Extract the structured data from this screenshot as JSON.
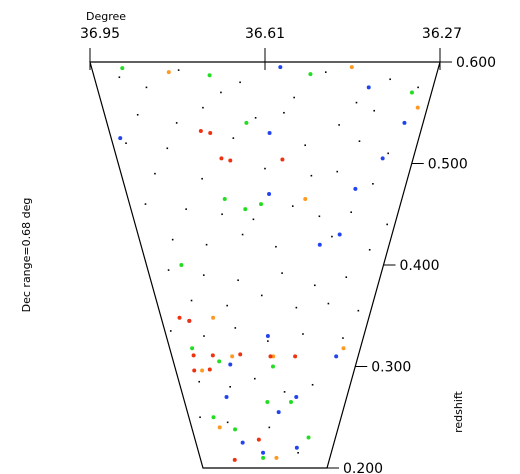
{
  "chart_data": {
    "type": "scatter",
    "x_label": "Degree",
    "y_label": "redshift",
    "side_label": "Dec range=0.68 deg",
    "xlim": [
      36.95,
      36.27
    ],
    "xticks": [
      36.95,
      36.61,
      36.27
    ],
    "ylim": [
      0.2,
      0.6
    ],
    "yticks": [
      {
        "value": 0.2,
        "label": "0.200"
      },
      {
        "value": 0.3,
        "label": "0.300"
      },
      {
        "value": 0.4,
        "label": "0.400"
      },
      {
        "value": 0.5,
        "label": "0.500"
      },
      {
        "value": 0.6,
        "label": "0.600"
      }
    ],
    "series": [
      {
        "color": "#000000",
        "x": [
          36.9,
          36.85,
          36.78,
          36.7,
          36.66,
          36.55,
          36.49,
          36.42,
          36.36,
          36.3,
          36.88,
          36.8,
          36.74,
          36.63,
          36.57,
          36.45,
          36.38,
          36.92,
          36.83,
          36.68,
          36.52,
          36.4,
          36.33,
          36.87,
          36.76,
          36.61,
          36.5,
          36.44,
          36.35,
          36.91,
          36.81,
          36.72,
          36.64,
          36.54,
          36.47,
          36.39,
          36.29,
          36.86,
          36.77,
          36.67,
          36.58,
          36.43,
          36.32,
          36.89,
          36.79,
          36.69,
          36.56,
          36.46,
          36.37,
          36.84,
          36.73,
          36.62,
          36.51,
          36.41,
          36.31,
          36.93,
          36.82,
          36.71,
          36.6,
          36.48,
          36.34,
          36.87,
          36.75,
          36.65,
          36.53,
          36.42,
          36.9,
          36.78,
          36.59,
          36.44
        ],
        "y": [
          0.585,
          0.575,
          0.592,
          0.57,
          0.58,
          0.565,
          0.59,
          0.56,
          0.583,
          0.575,
          0.548,
          0.54,
          0.555,
          0.545,
          0.55,
          0.538,
          0.552,
          0.52,
          0.515,
          0.525,
          0.518,
          0.522,
          0.51,
          0.49,
          0.485,
          0.495,
          0.488,
          0.492,
          0.48,
          0.46,
          0.455,
          0.45,
          0.445,
          0.458,
          0.448,
          0.452,
          0.44,
          0.425,
          0.42,
          0.43,
          0.418,
          0.428,
          0.415,
          0.395,
          0.39,
          0.385,
          0.392,
          0.38,
          0.388,
          0.365,
          0.36,
          0.37,
          0.358,
          0.362,
          0.355,
          0.335,
          0.33,
          0.338,
          0.325,
          0.332,
          0.328,
          0.285,
          0.28,
          0.288,
          0.275,
          0.282,
          0.25,
          0.245,
          0.24,
          0.215
        ]
      },
      {
        "color": "#22dd22",
        "x": [
          36.89,
          36.72,
          36.52,
          36.31,
          36.65,
          36.71,
          36.66,
          36.62,
          36.85,
          36.87,
          36.78,
          36.58,
          36.84,
          36.6,
          36.5,
          36.75,
          36.4,
          36.62
        ],
        "y": [
          0.594,
          0.587,
          0.588,
          0.57,
          0.54,
          0.465,
          0.455,
          0.46,
          0.4,
          0.318,
          0.305,
          0.3,
          0.25,
          0.265,
          0.265,
          0.238,
          0.23,
          0.21
        ]
      },
      {
        "color": "#ff9922",
        "x": [
          36.8,
          36.44,
          36.29,
          36.51,
          36.78,
          36.73,
          36.58,
          36.33,
          36.85,
          36.55,
          36.82
        ],
        "y": [
          0.59,
          0.595,
          0.555,
          0.465,
          0.348,
          0.31,
          0.31,
          0.318,
          0.296,
          0.21,
          0.24
        ]
      },
      {
        "color": "#2244ee",
        "x": [
          36.58,
          36.4,
          36.31,
          36.93,
          36.6,
          36.34,
          36.39,
          36.6,
          36.41,
          36.46,
          36.86,
          36.6,
          36.35,
          36.74,
          36.77,
          36.48,
          36.55,
          36.72,
          36.45,
          36.62
        ],
        "y": [
          0.595,
          0.575,
          0.54,
          0.525,
          0.53,
          0.505,
          0.475,
          0.47,
          0.43,
          0.42,
          0.345,
          0.33,
          0.31,
          0.302,
          0.27,
          0.27,
          0.255,
          0.225,
          0.22,
          0.215
        ]
      },
      {
        "color": "#ee3311",
        "x": [
          36.75,
          36.73,
          36.71,
          36.69,
          36.57,
          36.89,
          36.86,
          36.87,
          36.8,
          36.7,
          36.59,
          36.5,
          36.88,
          36.82,
          36.64,
          36.77
        ],
        "y": [
          0.532,
          0.53,
          0.505,
          0.503,
          0.504,
          0.348,
          0.345,
          0.311,
          0.311,
          0.312,
          0.31,
          0.31,
          0.296,
          0.297,
          0.228,
          0.208
        ]
      }
    ]
  }
}
